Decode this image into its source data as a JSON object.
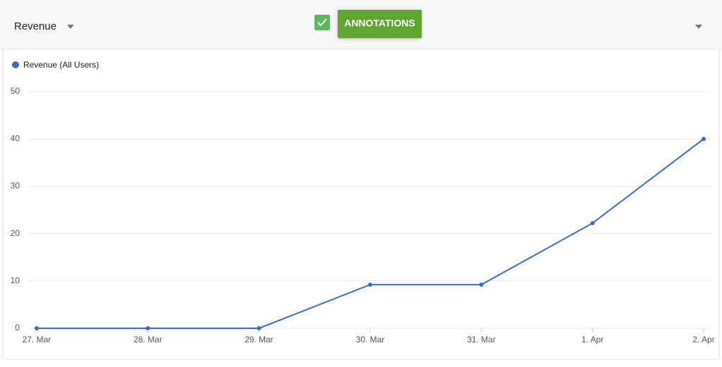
{
  "toolbar": {
    "metric": "Revenue",
    "button": "ANNOTATIONS"
  },
  "chart_data": {
    "type": "line",
    "categories": [
      "27. Mar",
      "28. Mar",
      "29. Mar",
      "30. Mar",
      "31. Mar",
      "1. Apr",
      "2. Apr"
    ],
    "series": [
      {
        "name": "Revenue (All Users)",
        "color": "#3b6cc9",
        "values": [
          0,
          0,
          0,
          9.2,
          9.2,
          22.2,
          40
        ]
      }
    ],
    "ylim": [
      0,
      50
    ],
    "yticks": [
      0,
      10,
      20,
      30,
      40,
      50
    ],
    "grid": true,
    "legend": "top-left"
  }
}
